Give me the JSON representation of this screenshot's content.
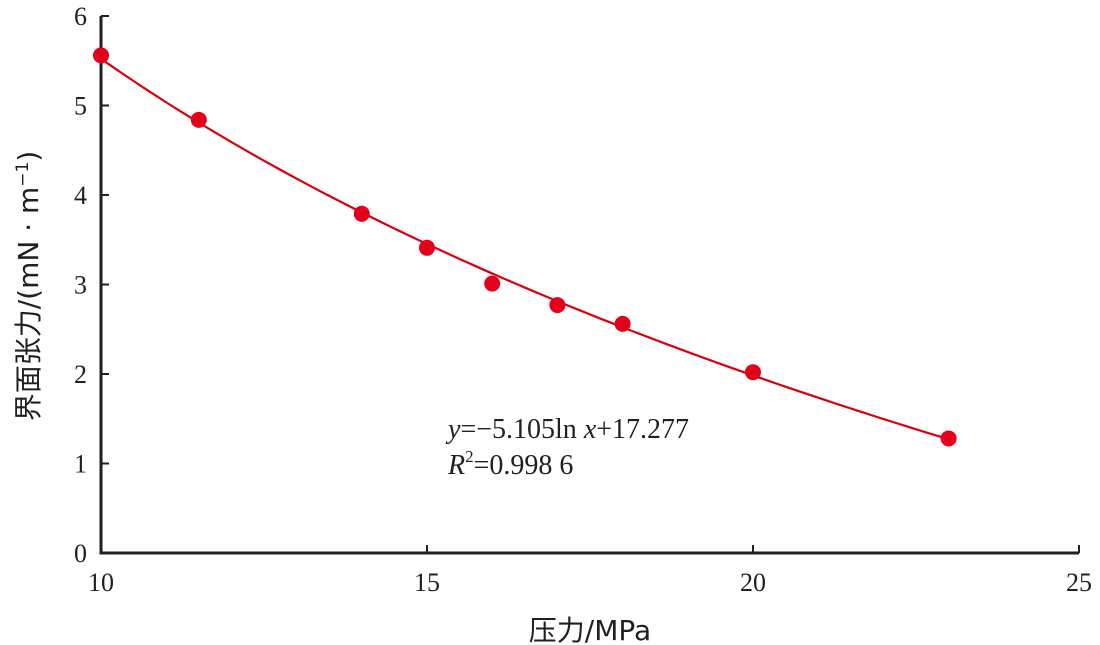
{
  "chart_data": {
    "type": "scatter",
    "xlabel": "压力/MPa",
    "ylabel_main": "界面张力/(mN · m",
    "ylabel_sup": "−1",
    "ylabel_close": ")",
    "xlim": [
      10,
      25
    ],
    "ylim": [
      0,
      6
    ],
    "xticks": [
      10,
      15,
      20,
      25
    ],
    "yticks": [
      0,
      1,
      2,
      3,
      4,
      5,
      6
    ],
    "series": [
      {
        "x": [
          10,
          11.5,
          14,
          15,
          16,
          17,
          18,
          20,
          23
        ],
        "y": [
          5.56,
          4.84,
          3.79,
          3.41,
          3.01,
          2.77,
          2.56,
          2.02,
          1.28
        ]
      }
    ],
    "fit": {
      "type": "logarithmic",
      "a": -5.105,
      "b": 17.277,
      "x_range": [
        10,
        23
      ]
    },
    "equation": {
      "y": "y",
      "eq_rest": "=−5.105ln ",
      "x": "x",
      "eq_tail": "+17.277",
      "r": "R",
      "r_sup": "2",
      "r_rest": "=0.998 6"
    },
    "colors": {
      "points": "#e2001a",
      "fit_line": "#d7000f",
      "axis": "#231f20"
    }
  }
}
